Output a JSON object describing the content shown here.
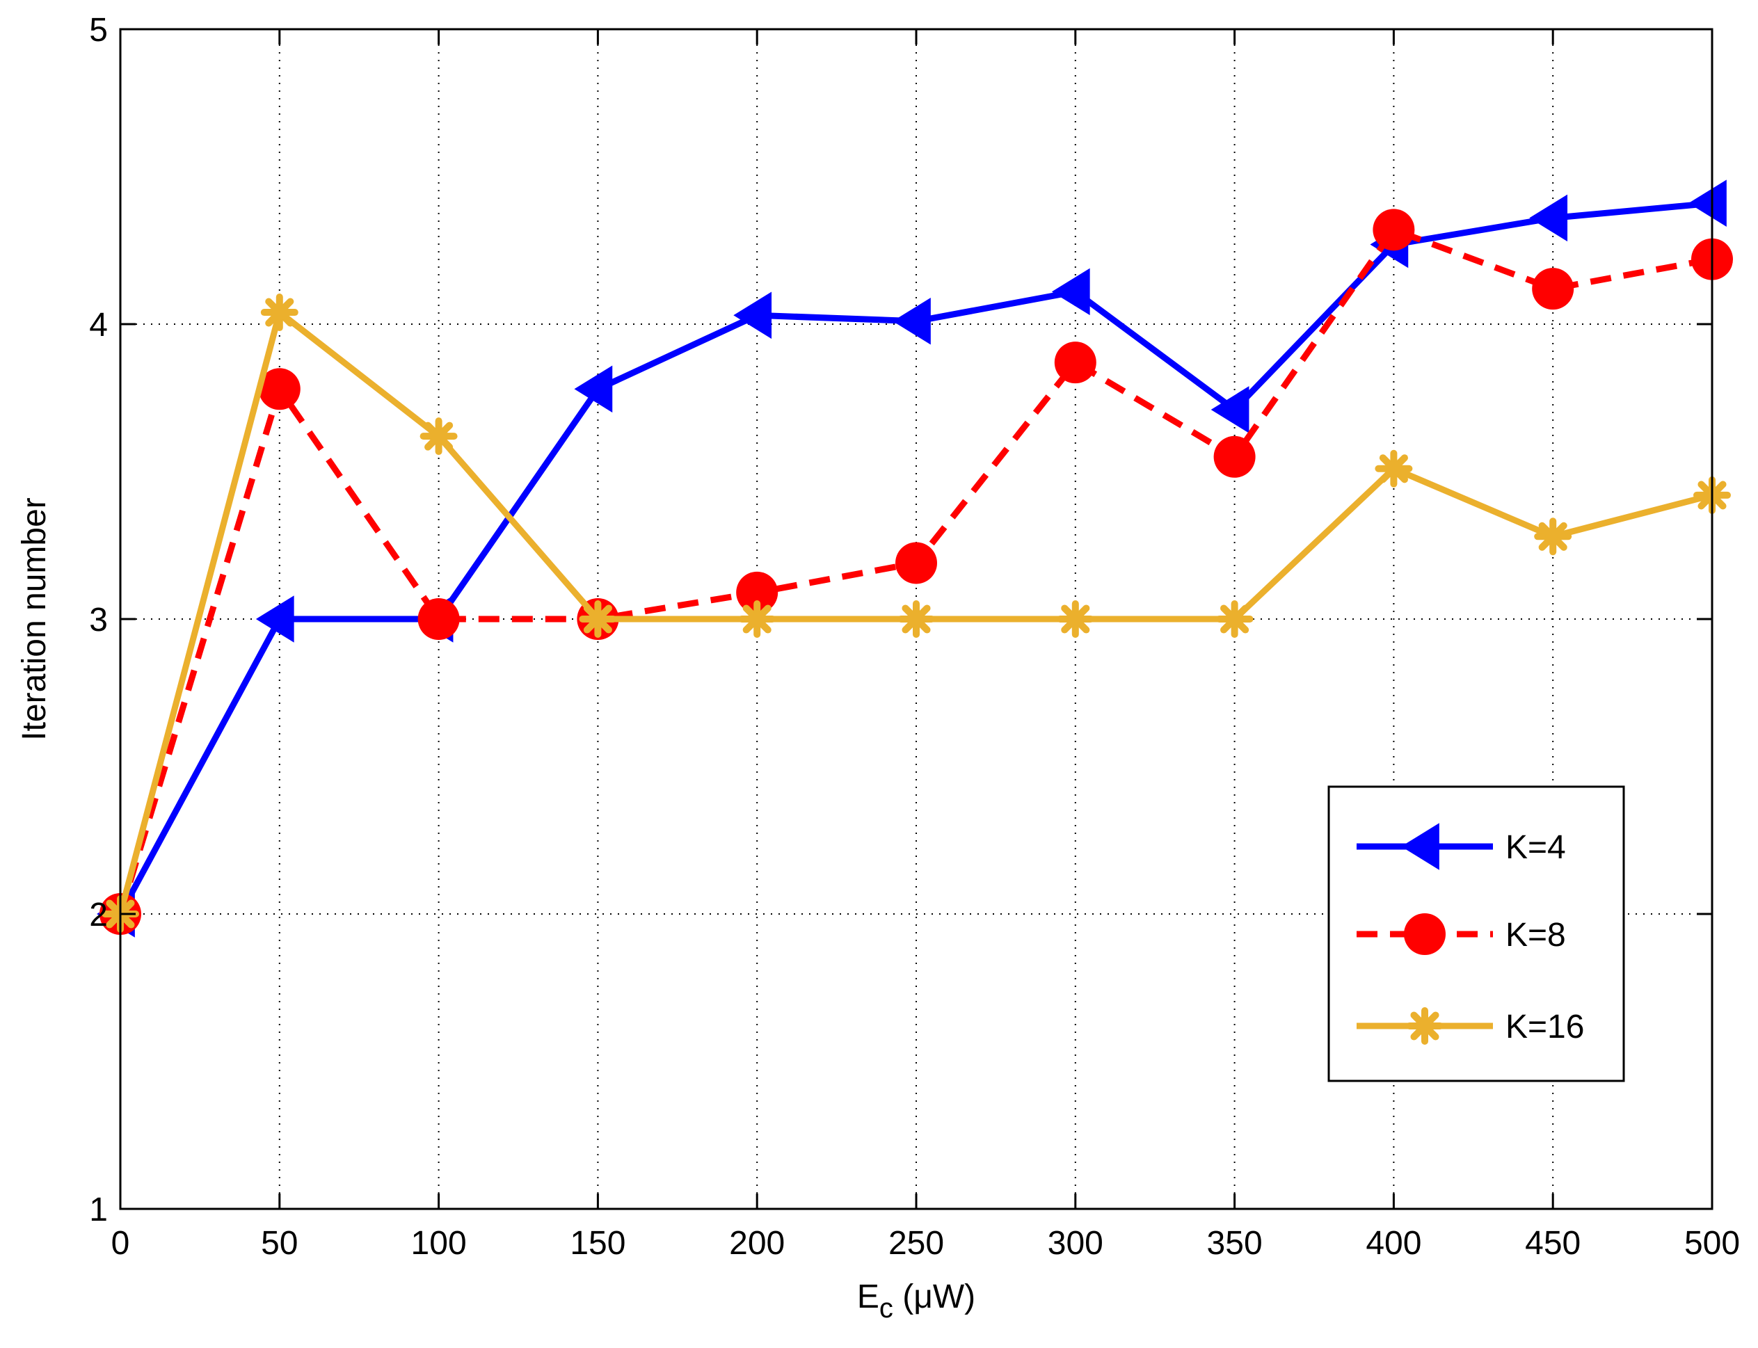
{
  "chart_data": {
    "type": "line",
    "x": [
      0,
      50,
      100,
      150,
      200,
      250,
      300,
      350,
      400,
      450,
      500
    ],
    "xticks": [
      "0",
      "50",
      "100",
      "150",
      "200",
      "250",
      "300",
      "350",
      "400",
      "450",
      "500"
    ],
    "yticks": [
      "1",
      "2",
      "3",
      "4",
      "5"
    ],
    "xlim": [
      0,
      500
    ],
    "ylim": [
      1,
      5
    ],
    "xlabel_main": "E",
    "xlabel_sub": "c",
    "xlabel_unit": " (μW)",
    "ylabel": "Iteration number",
    "grid": true,
    "legend_position": "lower-right",
    "series": [
      {
        "name": "K=4",
        "color": "#0000ff",
        "marker": "triangle-left",
        "line_style": "solid",
        "values": [
          2.0,
          3.0,
          3.0,
          3.78,
          4.03,
          4.01,
          4.11,
          3.71,
          4.27,
          4.36,
          4.41
        ]
      },
      {
        "name": "K=8",
        "color": "#ff0000",
        "marker": "circle",
        "line_style": "dashed",
        "values": [
          2.0,
          3.78,
          3.0,
          3.0,
          3.09,
          3.19,
          3.87,
          3.55,
          4.32,
          4.12,
          4.22
        ]
      },
      {
        "name": "K=16",
        "color": "#ebb02d",
        "marker": "asterisk",
        "line_style": "solid",
        "values": [
          2.0,
          4.04,
          3.62,
          3.0,
          3.0,
          3.0,
          3.0,
          3.0,
          3.51,
          3.28,
          3.42
        ]
      }
    ]
  }
}
